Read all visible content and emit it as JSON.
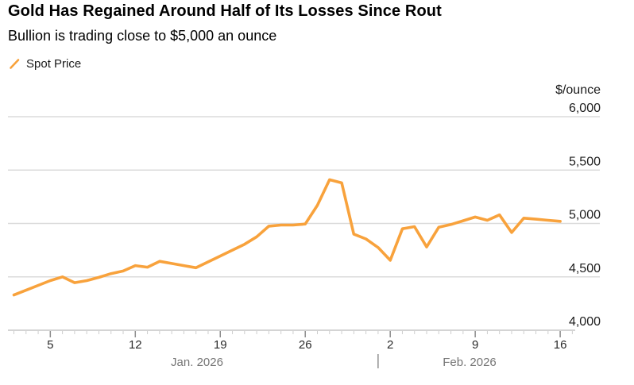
{
  "header": {
    "title": "Gold Has Regained Around Half of Its Losses Since Rout",
    "subtitle": "Bullion is trading close to $5,000 an ounce"
  },
  "legend": {
    "label": "Spot Price",
    "marker_icon": "orange-slash-icon",
    "color": "#F8A23C"
  },
  "colors": {
    "line": "#F8A23C",
    "gridline": "#dbdbdb",
    "axis_line": "#c6c6c6",
    "minor_tick": "#cdcdcd",
    "major_tick": "#8c8c8c",
    "y_label": "#1c1c1c",
    "day_label": "#2a2a2a",
    "month_label": "#757575"
  },
  "chart_data": {
    "type": "line",
    "title": "Gold Has Regained Around Half of Its Losses Since Rout",
    "subtitle": "Bullion is trading close to $5,000 an ounce",
    "ylabel": "$/ounce",
    "ylim": [
      4000,
      6000
    ],
    "grid": "horizontal",
    "legend_position": "top-left",
    "yticks": [
      {
        "value": 4000,
        "label": "4,000"
      },
      {
        "value": 4500,
        "label": "4,500"
      },
      {
        "value": 5000,
        "label": "5,000"
      },
      {
        "value": 5500,
        "label": "5,500"
      },
      {
        "value": 6000,
        "label": "6,000"
      }
    ],
    "xticks": [
      {
        "label": "5",
        "day_index": 3
      },
      {
        "label": "12",
        "day_index": 10
      },
      {
        "label": "19",
        "day_index": 17
      },
      {
        "label": "26",
        "day_index": 24
      },
      {
        "label": "2",
        "day_index": 31
      },
      {
        "label": "9",
        "day_index": 38
      },
      {
        "label": "16",
        "day_index": 45
      }
    ],
    "month_labels": [
      "Jan. 2026",
      "Feb. 2026"
    ],
    "month_separator": "|",
    "month_separator_day_index": 30,
    "x": [
      "Jan 2",
      "Jan 3",
      "Jan 4",
      "Jan 5",
      "Jan 6",
      "Jan 7",
      "Jan 8",
      "Jan 9",
      "Jan 10",
      "Jan 11",
      "Jan 12",
      "Jan 13",
      "Jan 14",
      "Jan 15",
      "Jan 16",
      "Jan 17",
      "Jan 18",
      "Jan 19",
      "Jan 20",
      "Jan 21",
      "Jan 22",
      "Jan 23",
      "Jan 24",
      "Jan 25",
      "Jan 26",
      "Jan 27",
      "Jan 28",
      "Jan 29",
      "Jan 30",
      "Jan 31",
      "Feb 1",
      "Feb 2",
      "Feb 3",
      "Feb 4",
      "Feb 5",
      "Feb 6",
      "Feb 7",
      "Feb 8",
      "Feb 9",
      "Feb 10",
      "Feb 11",
      "Feb 12",
      "Feb 13",
      "Feb 14",
      "Feb 15",
      "Feb 16"
    ],
    "series": [
      {
        "name": "Spot Price",
        "color": "#F8A23C",
        "values": [
          4330,
          4375,
          4420,
          4465,
          4500,
          4445,
          4465,
          4495,
          4530,
          4555,
          4605,
          4590,
          4645,
          4625,
          4605,
          4585,
          4640,
          4695,
          4750,
          4805,
          4875,
          4975,
          4985,
          4985,
          4995,
          5170,
          5410,
          5380,
          4900,
          4855,
          4775,
          4655,
          4950,
          4970,
          4780,
          4965,
          4990,
          5025,
          5060,
          5030,
          5080,
          4915,
          5050,
          5040,
          5030,
          5020
        ]
      }
    ]
  }
}
